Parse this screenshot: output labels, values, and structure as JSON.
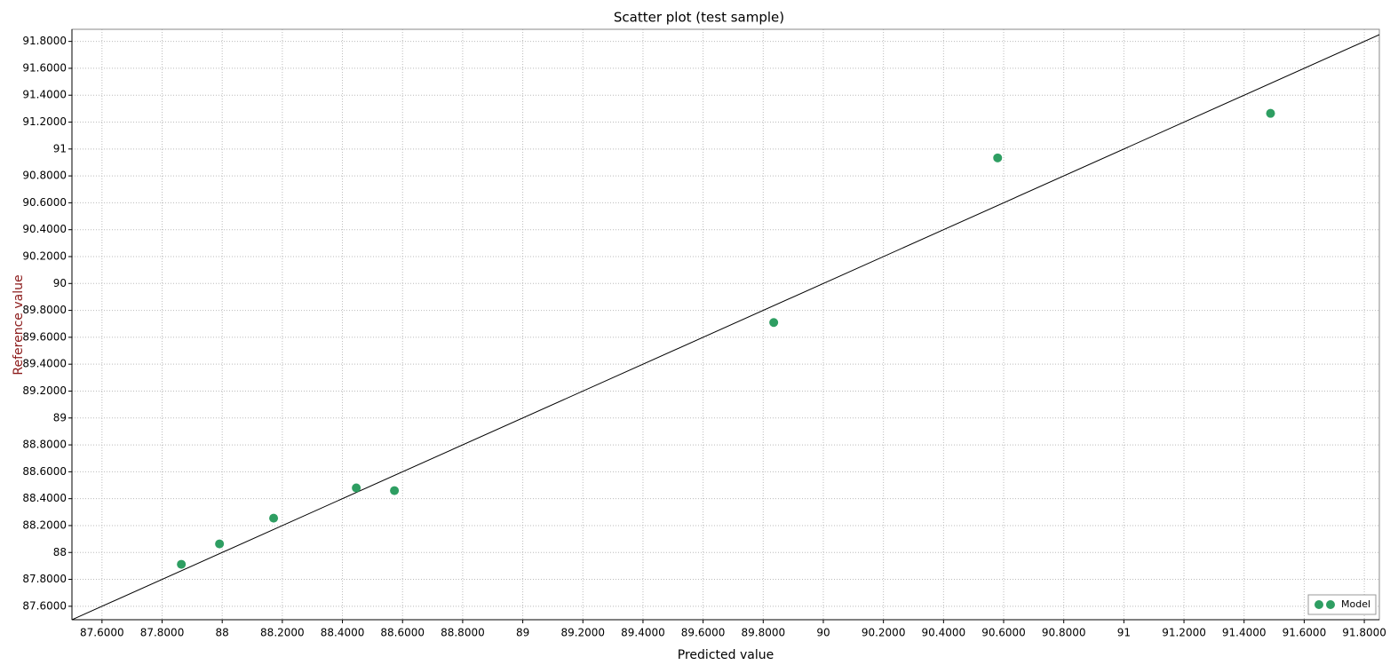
{
  "chart_data": {
    "type": "scatter",
    "title": "Scatter plot (test sample)",
    "x_label": "Predicted value",
    "y_label": "Reference value",
    "xlim": [
      87.5,
      91.85
    ],
    "ylim": [
      87.5,
      91.89
    ],
    "xticks": [
      {
        "value": 87.6,
        "label": "87.6000"
      },
      {
        "value": 87.8,
        "label": "87.8000"
      },
      88,
      {
        "value": 88.2,
        "label": "88.2000"
      },
      {
        "value": 88.4,
        "label": "88.4000"
      },
      {
        "value": 88.6,
        "label": "88.6000"
      },
      {
        "value": 88.8,
        "label": "88.8000"
      },
      89,
      {
        "value": 89.2,
        "label": "89.2000"
      },
      {
        "value": 89.4,
        "label": "89.4000"
      },
      {
        "value": 89.6,
        "label": "89.6000"
      },
      {
        "value": 89.8,
        "label": "89.8000"
      },
      90,
      {
        "value": 90.2,
        "label": "90.2000"
      },
      {
        "value": 90.4,
        "label": "90.4000"
      },
      {
        "value": 90.6,
        "label": "90.6000"
      },
      {
        "value": 90.8,
        "label": "90.8000"
      },
      91,
      {
        "value": 91.2,
        "label": "91.2000"
      },
      {
        "value": 91.4,
        "label": "91.4000"
      },
      {
        "value": 91.6,
        "label": "91.6000"
      },
      {
        "value": 91.8,
        "label": "91.8000"
      }
    ],
    "yticks": [
      {
        "value": 87.6,
        "label": "87.6000"
      },
      {
        "value": 87.8,
        "label": "87.8000"
      },
      88,
      {
        "value": 88.2,
        "label": "88.2000"
      },
      {
        "value": 88.4,
        "label": "88.4000"
      },
      {
        "value": 88.6,
        "label": "88.6000"
      },
      {
        "value": 88.8,
        "label": "88.8000"
      },
      89,
      {
        "value": 89.2,
        "label": "89.2000"
      },
      {
        "value": 89.4,
        "label": "89.4000"
      },
      {
        "value": 89.6,
        "label": "89.6000"
      },
      {
        "value": 89.8,
        "label": "89.8000"
      },
      90,
      {
        "value": 90.2,
        "label": "90.2000"
      },
      {
        "value": 90.4,
        "label": "90.4000"
      },
      {
        "value": 90.6,
        "label": "90.6000"
      },
      {
        "value": 90.8,
        "label": "90.8000"
      },
      91,
      {
        "value": 91.2,
        "label": "91.2000"
      },
      {
        "value": 91.4,
        "label": "91.4000"
      },
      {
        "value": 91.6,
        "label": "91.6000"
      },
      {
        "value": 91.8,
        "label": "91.8000"
      }
    ],
    "grid": true,
    "identity_line": true,
    "legend": "bottom-right",
    "series": [
      {
        "name": "Model",
        "color": "#2e9e62",
        "x": [
          87.864,
          87.991,
          88.171,
          88.446,
          88.573,
          89.835,
          90.58,
          91.488
        ],
        "values": [
          87.912,
          88.064,
          88.255,
          88.48,
          88.46,
          89.71,
          90.934,
          91.265
        ]
      }
    ]
  }
}
